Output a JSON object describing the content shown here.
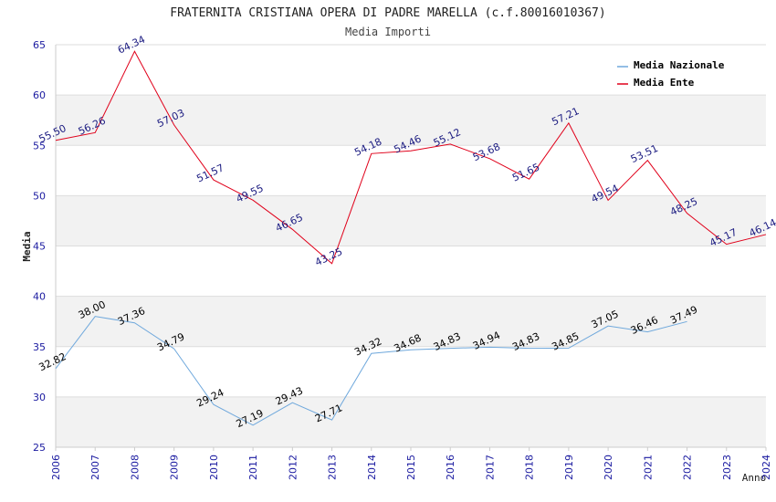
{
  "chart_data": {
    "type": "line",
    "title": "FRATERNITA CRISTIANA OPERA DI PADRE MARELLA (c.f.80016010367)",
    "subtitle": "Media Importi",
    "xlabel": "Anno",
    "ylabel": "Media",
    "ylim": [
      25,
      65
    ],
    "yticks": [
      25,
      30,
      35,
      40,
      45,
      50,
      55,
      60,
      65
    ],
    "categories": [
      "2006",
      "2007",
      "2008",
      "2009",
      "2010",
      "2011",
      "2012",
      "2013",
      "2014",
      "2015",
      "2016",
      "2017",
      "2018",
      "2019",
      "2020",
      "2021",
      "2022",
      "2023",
      "2024"
    ],
    "legend_position": "top-right",
    "series": [
      {
        "name": "Media Nazionale",
        "color": "#6fa8dc",
        "label_color": "#000000",
        "values": [
          32.82,
          38.0,
          37.36,
          34.79,
          29.24,
          27.19,
          29.43,
          27.71,
          34.32,
          34.68,
          34.83,
          34.94,
          34.83,
          34.85,
          37.05,
          36.46,
          37.49,
          null,
          null
        ],
        "labels": [
          "32.82",
          "38.00",
          "37.36",
          "34.79",
          "29.24",
          "27.19",
          "29.43",
          "27.71",
          "34.32",
          "34.68",
          "34.83",
          "34.94",
          "34.83",
          "34.85",
          "37.05",
          "36.46",
          "37.49",
          null,
          null
        ]
      },
      {
        "name": "Media Ente",
        "color": "#e0001a",
        "label_color": "#1a1a80",
        "values": [
          55.5,
          56.26,
          64.34,
          57.03,
          51.57,
          49.55,
          46.65,
          43.25,
          54.18,
          54.46,
          55.12,
          53.68,
          51.65,
          57.21,
          49.54,
          53.51,
          48.25,
          45.17,
          46.14
        ],
        "labels": [
          "55.50",
          "56.26",
          "64.34",
          "57.03",
          "51.57",
          "49.55",
          "46.65",
          "43.25",
          "54.18",
          "54.46",
          "55.12",
          "53.68",
          "51.65",
          "57.21",
          "49.54",
          "53.51",
          "48.25",
          "45.17",
          "46.14"
        ]
      }
    ],
    "colors": {
      "band": "#f2f2f2",
      "grid": "#dddddd",
      "axis_tick_text": "#1a1aa0",
      "title_text": "#222222"
    }
  }
}
